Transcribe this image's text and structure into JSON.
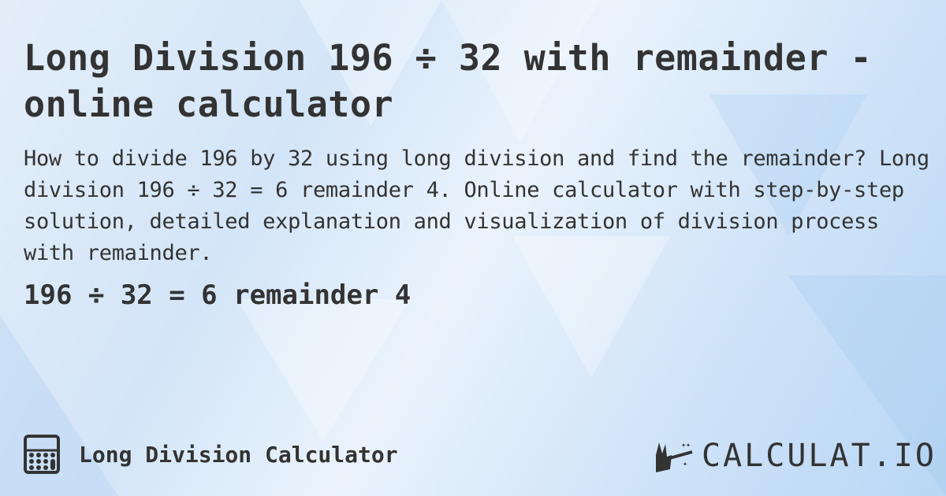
{
  "title": "Long Division 196 ÷ 32 with remainder - online calculator",
  "description": "How to divide 196 by 32 using long division and find the remainder? Long division 196 ÷ 32 = 6 remainder 4. Online calculator with step-by-step solution, detailed explanation and visualization of division process with remainder.",
  "result": "196 ÷ 32 = 6 remainder 4",
  "footer": {
    "calculator_name": "Long Division Calculator",
    "icon": "calculator-icon"
  },
  "logo": {
    "text": "CALCULAT.IO",
    "icon": "magic-hand-wand-icon"
  }
}
